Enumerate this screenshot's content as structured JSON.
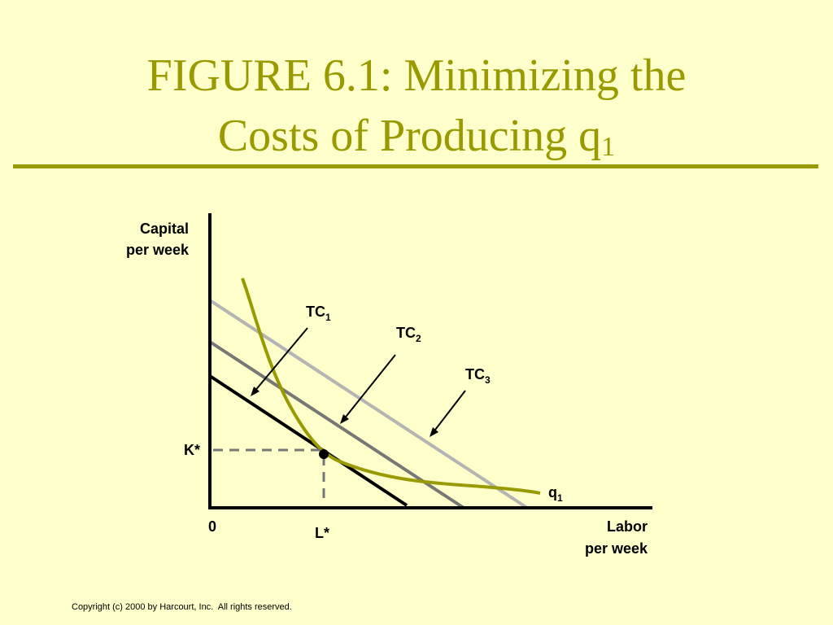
{
  "slide": {
    "title_line1": "FIGURE 6.1: Minimizing the",
    "title_line2": "Costs of Producing q",
    "title_subscript": "1",
    "copyright": "Copyright (c) 2000 by Harcourt, Inc.  All rights reserved."
  },
  "diagram": {
    "y_axis_label_line1": "Capital",
    "y_axis_label_line2": "per week",
    "x_axis_label_line1": "Labor",
    "x_axis_label_line2": "per week",
    "origin_label": "0",
    "k_star_label": "K*",
    "l_star_label": "L*",
    "tc1_label": "TC",
    "tc1_sub": "1",
    "tc2_label": "TC",
    "tc2_sub": "2",
    "tc3_label": "TC",
    "tc3_sub": "3",
    "q1_label": "q",
    "q1_sub": "1"
  },
  "colors": {
    "background": "#ffffcc",
    "accent": "#999900",
    "isoquant": "#999900",
    "tc1": "#000000",
    "tc2": "#777777",
    "tc3": "#b4b4b4",
    "dashed": "#777777"
  }
}
